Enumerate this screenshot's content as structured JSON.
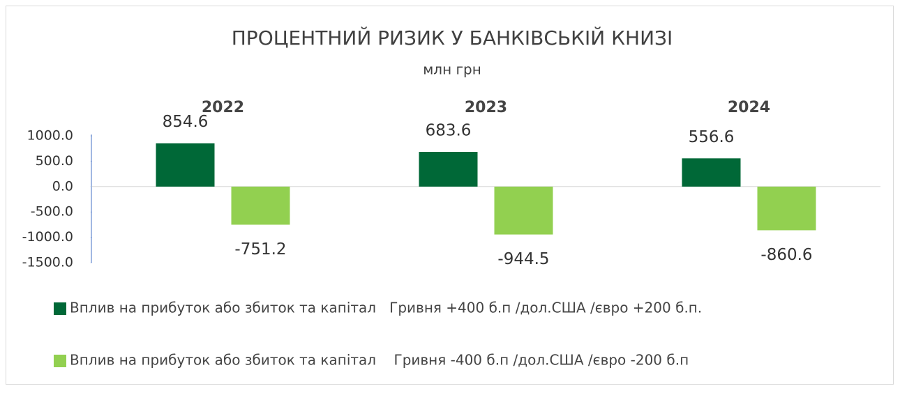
{
  "chart_data": {
    "type": "bar",
    "title": "ПРОЦЕНТНИЙ РИЗИК У БАНКІВСЬКІЙ КНИЗІ",
    "subtitle": "млн грн",
    "categories": [
      "2022",
      "2023",
      "2024"
    ],
    "series": [
      {
        "name": "Вплив на прибуток або збиток та капітал   Гривня +400 б.п /дол.США /євро +200 б.п.",
        "color": "#006837",
        "values": [
          854.6,
          683.6,
          556.6
        ]
      },
      {
        "name": "Вплив на прибуток або збиток та капітал    Гривня -400 б.п /дол.США /євро -200 б.п",
        "color": "#92d050",
        "values": [
          -751.2,
          -944.5,
          -860.6
        ]
      }
    ],
    "ylim": [
      -1500,
      1000
    ],
    "yticks": [
      {
        "value": 1000,
        "label": "1000.0"
      },
      {
        "value": 500,
        "label": "500.0"
      },
      {
        "value": 0,
        "label": "0.0"
      },
      {
        "value": -500,
        "label": "-500.0"
      },
      {
        "value": -1000,
        "label": "-1000.0"
      },
      {
        "value": -1500,
        "label": "-1500.0"
      }
    ],
    "legend": "bottom"
  }
}
